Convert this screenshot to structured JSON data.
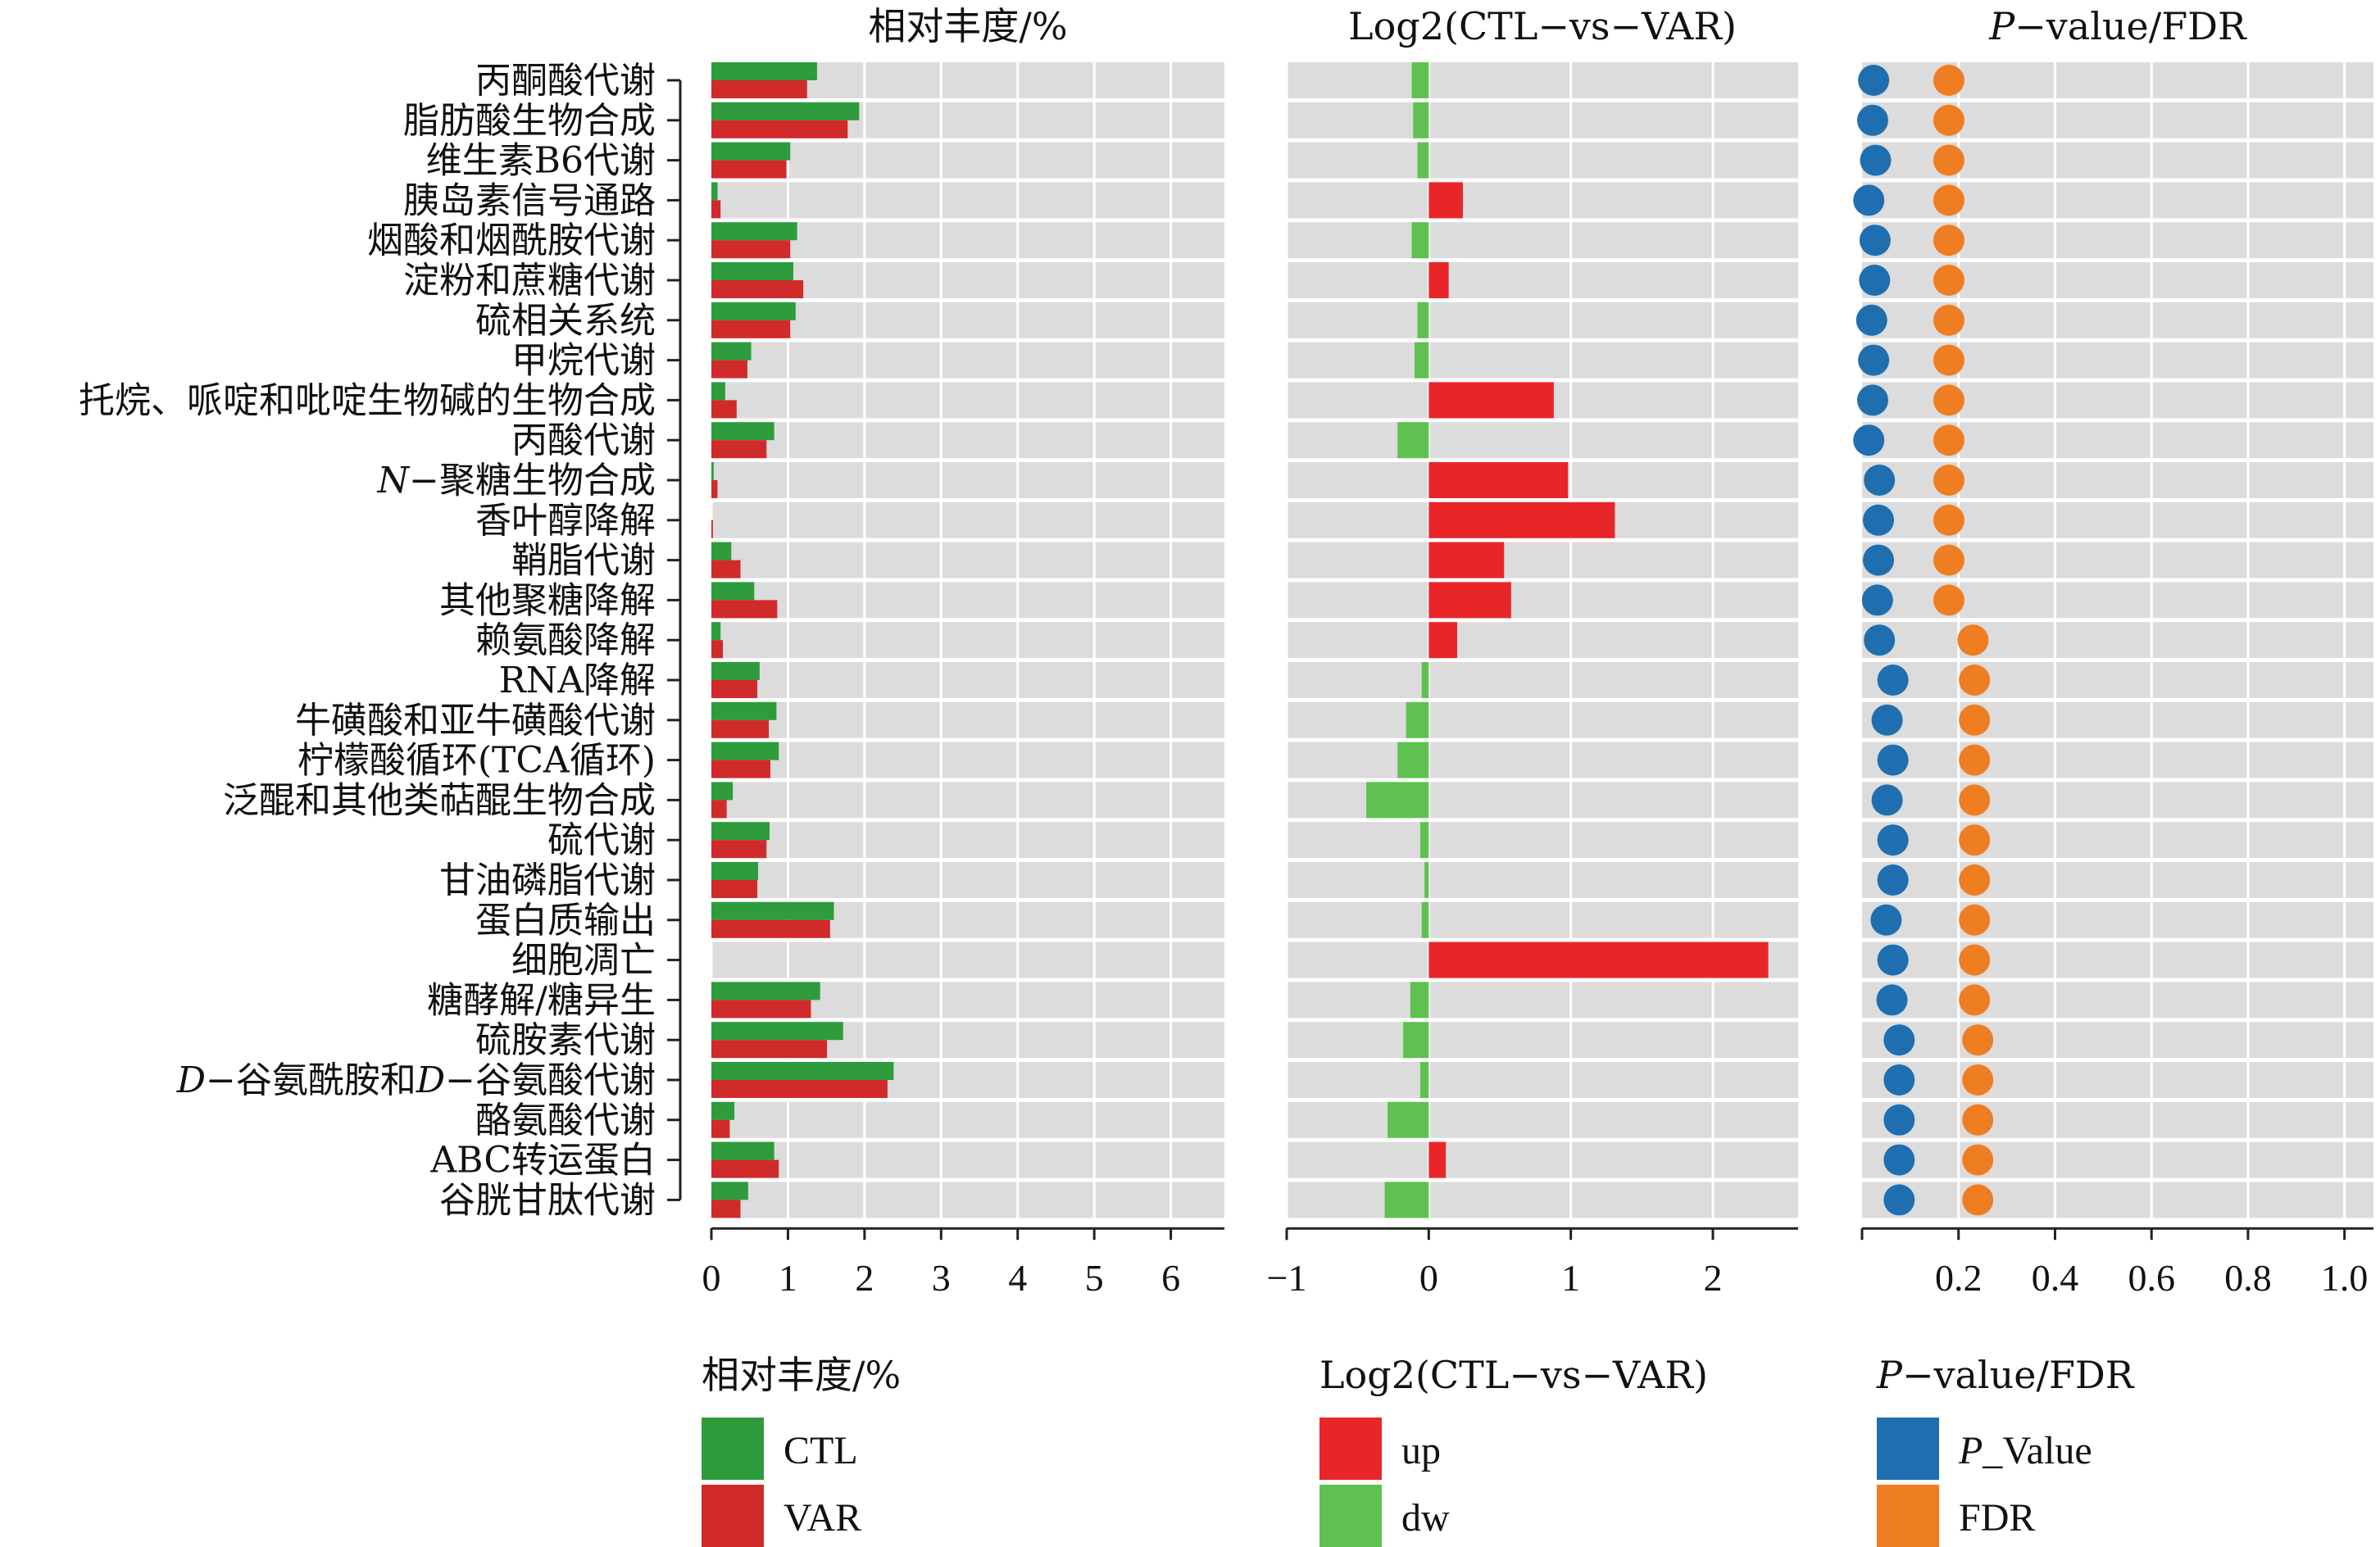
{
  "chart_data": {
    "type": "bar",
    "panels": [
      {
        "title": "相对丰度/%",
        "xlim": [
          0,
          6.7
        ],
        "ticks": [
          "0",
          "1",
          "2",
          "3",
          "4",
          "5",
          "6"
        ],
        "grid": true
      },
      {
        "title": "Log2(CTL−vs−VAR)",
        "xlim": [
          -1,
          2.6
        ],
        "ticks": [
          "−1",
          "0",
          "1",
          "2"
        ],
        "grid": true
      },
      {
        "title": "P−value/FDR",
        "title_italic_prefix": "P",
        "title_rest": "−value/FDR",
        "xlim": [
          0,
          1.06
        ],
        "ticks": [
          "0.2",
          "0.4",
          "0.6",
          "0.8",
          "1.0"
        ],
        "grid": true
      }
    ],
    "categories": [
      "丙酮酸代谢",
      "脂肪酸生物合成",
      "维生素B6代谢",
      "胰岛素信号通路",
      "烟酸和烟酰胺代谢",
      "淀粉和蔗糖代谢",
      "硫相关系统",
      "甲烷代谢",
      "托烷、哌啶和吡啶生物碱的生物合成",
      "丙酸代谢",
      "N−聚糖生物合成",
      "香叶醇降解",
      "鞘脂代谢",
      "其他聚糖降解",
      "赖氨酸降解",
      "RNA降解",
      "牛磺酸和亚牛磺酸代谢",
      "柠檬酸循环(TCA循环)",
      "泛醌和其他类萜醌生物合成",
      "硫代谢",
      "甘油磷脂代谢",
      "蛋白质输出",
      "细胞凋亡",
      "糖酵解/糖异生",
      "硫胺素代谢",
      "D−谷氨酰胺和D−谷氨酸代谢",
      "酪氨酸代谢",
      "ABC转运蛋白",
      "谷胱甘肽代谢"
    ],
    "series": [
      {
        "name": "CTL",
        "panel": 0,
        "color": "#2e9b3c",
        "values": [
          1.38,
          1.93,
          1.03,
          0.08,
          1.12,
          1.07,
          1.1,
          0.52,
          0.18,
          0.82,
          0.03,
          0.0,
          0.26,
          0.56,
          0.12,
          0.63,
          0.85,
          0.88,
          0.28,
          0.76,
          0.61,
          1.6,
          0.0,
          1.42,
          1.72,
          2.38,
          0.3,
          0.82,
          0.48
        ]
      },
      {
        "name": "VAR",
        "panel": 0,
        "color": "#d12a2a",
        "values": [
          1.25,
          1.78,
          0.98,
          0.12,
          1.03,
          1.2,
          1.03,
          0.47,
          0.33,
          0.72,
          0.08,
          0.02,
          0.38,
          0.86,
          0.15,
          0.6,
          0.75,
          0.77,
          0.2,
          0.72,
          0.6,
          1.55,
          0.0,
          1.3,
          1.51,
          2.3,
          0.24,
          0.88,
          0.38
        ]
      },
      {
        "name": "log2",
        "panel": 1,
        "up_color": "#e8262a",
        "dw_color": "#5ec150",
        "values": [
          -0.12,
          -0.11,
          -0.08,
          0.24,
          -0.12,
          0.14,
          -0.08,
          -0.1,
          0.88,
          -0.22,
          0.98,
          1.31,
          0.53,
          0.58,
          0.2,
          -0.05,
          -0.16,
          -0.22,
          -0.44,
          -0.06,
          -0.03,
          -0.05,
          2.39,
          -0.13,
          -0.18,
          -0.06,
          -0.29,
          0.12,
          -0.31
        ]
      },
      {
        "name": "P_Value",
        "panel": 2,
        "color": "#1f6fb0",
        "values": [
          0.024,
          0.022,
          0.028,
          0.014,
          0.027,
          0.026,
          0.02,
          0.024,
          0.022,
          0.014,
          0.036,
          0.034,
          0.034,
          0.032,
          0.036,
          0.064,
          0.052,
          0.064,
          0.052,
          0.064,
          0.064,
          0.05,
          0.064,
          0.062,
          0.077,
          0.077,
          0.077,
          0.077,
          0.077
        ]
      },
      {
        "name": "FDR",
        "panel": 2,
        "color": "#ef7d22",
        "values": [
          0.18,
          0.18,
          0.18,
          0.18,
          0.18,
          0.18,
          0.18,
          0.18,
          0.18,
          0.18,
          0.18,
          0.18,
          0.18,
          0.18,
          0.23,
          0.233,
          0.233,
          0.233,
          0.233,
          0.233,
          0.233,
          0.233,
          0.233,
          0.233,
          0.24,
          0.24,
          0.24,
          0.24,
          0.24
        ]
      }
    ],
    "legends": [
      {
        "title": "相对丰度/%",
        "items": [
          {
            "label": "CTL",
            "color": "#2e9b3c"
          },
          {
            "label": "VAR",
            "color": "#d12a2a"
          }
        ]
      },
      {
        "title": "Log2(CTL−vs−VAR)",
        "items": [
          {
            "label": "up",
            "color": "#e8262a"
          },
          {
            "label": "dw",
            "color": "#5ec150"
          }
        ]
      },
      {
        "title": "P−value/FDR",
        "title_italic_prefix": "P",
        "title_rest": "−value/FDR",
        "items": [
          {
            "label": "P_Value",
            "italic_prefix": "P",
            "rest": "_Value",
            "color": "#1f6fb0"
          },
          {
            "label": "FDR",
            "italic_prefix": "",
            "rest": "FDR",
            "color": "#ef7d22"
          }
        ]
      }
    ]
  }
}
